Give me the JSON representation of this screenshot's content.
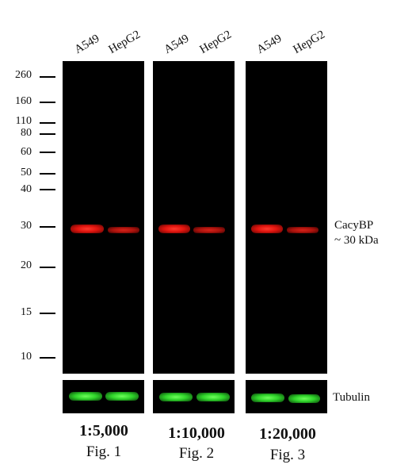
{
  "lanes": [
    "A549",
    "HepG2"
  ],
  "markers": [
    "260",
    "160",
    "110",
    "80",
    "60",
    "50",
    "40",
    "30",
    "20",
    "15",
    "10"
  ],
  "target": {
    "name": "CacyBP",
    "size": "~ 30 kDa"
  },
  "loading_control": "Tubulin",
  "panels": [
    {
      "dilution": "1:5,000",
      "figure": "Fig. 1"
    },
    {
      "dilution": "1:10,000",
      "figure": "Fig. 2"
    },
    {
      "dilution": "1:20,000",
      "figure": "Fig. 3"
    }
  ],
  "colors": {
    "target_band": "#e0140e",
    "tubulin_band": "#2fd32a",
    "membrane": "#000000"
  }
}
